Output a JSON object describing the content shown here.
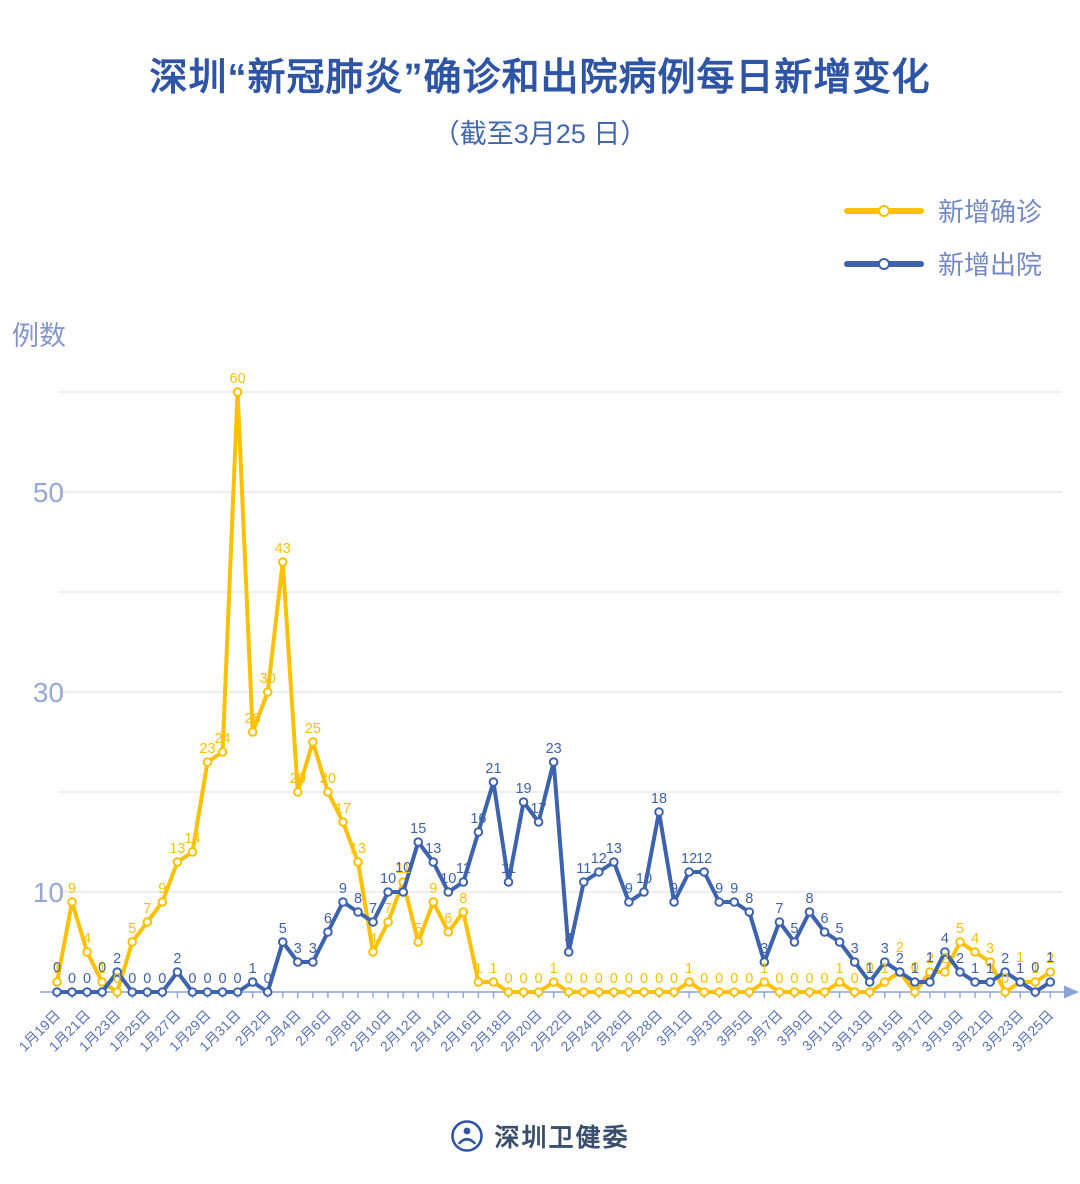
{
  "header": {
    "title": "深圳“新冠肺炎”确诊和出院病例每日新增变化",
    "subtitle": "（截至3月25 日）"
  },
  "legend": {
    "confirmed_label": "新增确诊",
    "discharged_label": "新增出院"
  },
  "axis": {
    "y_unit_label": "例数",
    "y_tick_labels": [
      10,
      30,
      50
    ]
  },
  "footer": {
    "brand": "深圳卫健委"
  },
  "colors": {
    "confirmed": "#FFC000",
    "discharged": "#3D62AE",
    "axis_line": "#8BA3DB",
    "gridline": "#E4E4E8",
    "date_label": "#5873B9",
    "y_label": "#97A7D6"
  },
  "chart_data": {
    "type": "line",
    "title": "深圳“新冠肺炎”确诊和出院病例每日新增变化",
    "subtitle": "（截至3月25 日）",
    "xlabel": "",
    "ylabel": "例数",
    "ylim": [
      0,
      62
    ],
    "grid": "horizontal, every 10 units (labels only at 10/30/50)",
    "legend_position": "top-right",
    "x": [
      "1月19日",
      "1月20日",
      "1月21日",
      "1月22日",
      "1月23日",
      "1月24日",
      "1月25日",
      "1月26日",
      "1月27日",
      "1月28日",
      "1月29日",
      "1月30日",
      "1月31日",
      "2月1日",
      "2月2日",
      "2月3日",
      "2月4日",
      "2月5日",
      "2月6日",
      "2月7日",
      "2月8日",
      "2月9日",
      "2月10日",
      "2月11日",
      "2月12日",
      "2月13日",
      "2月14日",
      "2月15日",
      "2月16日",
      "2月17日",
      "2月18日",
      "2月19日",
      "2月20日",
      "2月21日",
      "2月22日",
      "2月23日",
      "2月24日",
      "2月25日",
      "2月26日",
      "2月27日",
      "2月28日",
      "2月29日",
      "3月1日",
      "3月2日",
      "3月3日",
      "3月4日",
      "3月5日",
      "3月6日",
      "3月7日",
      "3月8日",
      "3月9日",
      "3月10日",
      "3月11日",
      "3月12日",
      "3月13日",
      "3月14日",
      "3月15日",
      "3月16日",
      "3月17日",
      "3月18日",
      "3月19日",
      "3月20日",
      "3月21日",
      "3月22日",
      "3月23日",
      "3月24日",
      "3月25日"
    ],
    "x_tick_every": 2,
    "series": [
      {
        "name": "新增确诊",
        "color": "#FFC000",
        "values": [
          1,
          9,
          4,
          1,
          0,
          5,
          7,
          9,
          13,
          14,
          23,
          24,
          60,
          26,
          30,
          43,
          20,
          25,
          20,
          17,
          13,
          4,
          7,
          11,
          5,
          9,
          6,
          8,
          1,
          1,
          0,
          0,
          0,
          1,
          0,
          0,
          0,
          0,
          0,
          0,
          0,
          0,
          1,
          0,
          0,
          0,
          0,
          1,
          0,
          0,
          0,
          0,
          1,
          0,
          0,
          1,
          2,
          0,
          2,
          2,
          5,
          4,
          3,
          0,
          1,
          1,
          2
        ]
      },
      {
        "name": "新增出院",
        "color": "#3D62AE",
        "values": [
          0,
          0,
          0,
          0,
          2,
          0,
          0,
          0,
          2,
          0,
          0,
          0,
          0,
          1,
          0,
          5,
          3,
          3,
          6,
          9,
          8,
          7,
          10,
          10,
          15,
          13,
          10,
          11,
          16,
          21,
          11,
          19,
          17,
          23,
          4,
          11,
          12,
          13,
          9,
          10,
          18,
          9,
          12,
          12,
          9,
          9,
          8,
          3,
          7,
          5,
          8,
          6,
          5,
          3,
          1,
          3,
          2,
          1,
          1,
          4,
          2,
          1,
          1,
          2,
          1,
          0,
          1
        ]
      }
    ]
  }
}
